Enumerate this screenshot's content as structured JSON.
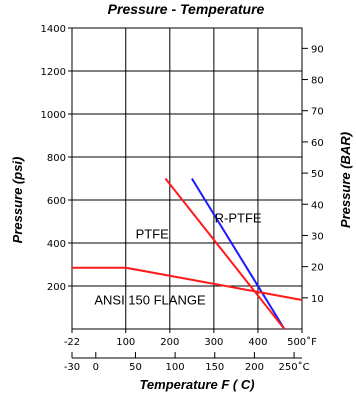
{
  "chart_data": {
    "type": "line",
    "title": "Pressure - Temperature",
    "xlabel": "Temperature  F ( C)",
    "ylabel": "Pressure (psi)",
    "y2label": "Pressure (BAR)",
    "xlim": [
      -22,
      500
    ],
    "ylim": [
      0,
      1400
    ],
    "x_ticks": [
      -22,
      100,
      200,
      300,
      400,
      500
    ],
    "x_tick_labels": [
      "-22",
      "100",
      "200",
      "300",
      "400",
      "500˚F"
    ],
    "x2_ticks": [
      -30,
      0,
      50,
      100,
      150,
      200,
      250
    ],
    "x2_tick_labels": [
      "-30",
      "0",
      "50",
      "100",
      "150",
      "200",
      "250˚C"
    ],
    "y_ticks": [
      200,
      400,
      600,
      800,
      1000,
      1200,
      1400
    ],
    "y2_ticks": [
      10,
      20,
      30,
      40,
      50,
      60,
      70,
      80,
      90
    ],
    "grid": true,
    "series": [
      {
        "name": "R-PTFE",
        "color": "#1a1aff",
        "x": [
          250,
          460
        ],
        "y": [
          700,
          0
        ]
      },
      {
        "name": "PTFE",
        "color": "#ff1a1a",
        "x": [
          190,
          460
        ],
        "y": [
          700,
          0
        ]
      },
      {
        "name": "ANSI 150 FLANGE",
        "color": "#ff1a1a",
        "x": [
          -22,
          100,
          500
        ],
        "y": [
          285,
          285,
          135
        ]
      }
    ],
    "annotations": [
      {
        "text": "R-PTFE",
        "x": 355,
        "y": 495
      },
      {
        "text": "PTFE",
        "x": 160,
        "y": 420
      },
      {
        "text": "ANSI 150 FLANGE",
        "x": 155,
        "y": 115
      }
    ]
  }
}
